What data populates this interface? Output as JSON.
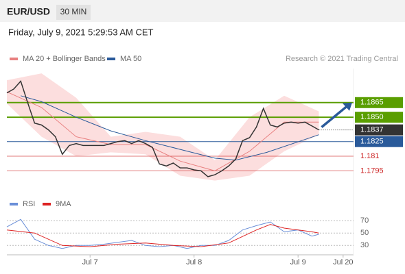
{
  "header": {
    "symbol": "EUR/USD",
    "timeframe": "30 MIN",
    "timestamp": "Friday, July 9, 2021 5:29:53 AM CET",
    "source": "Research © 2021 Trading Central"
  },
  "chart_data": [
    {
      "type": "price",
      "xlim": [
        0,
        100
      ],
      "xticks": [
        {
          "value": 24,
          "label": "Jul 7"
        },
        {
          "value": 54,
          "label": "Jul 8"
        },
        {
          "value": 84,
          "label": "Jul 9"
        },
        {
          "value": 97,
          "label": "Jul 20"
        }
      ],
      "ylim": [
        1.1777,
        1.19
      ],
      "price": {
        "color": "#333333",
        "x": [
          0,
          2,
          4,
          6,
          8,
          10,
          12,
          14,
          16,
          18,
          20,
          22,
          24,
          26,
          28,
          30,
          32,
          34,
          36,
          38,
          40,
          42,
          44,
          46,
          48,
          50,
          52,
          54,
          56,
          58,
          60,
          62,
          64,
          66,
          68,
          70,
          72,
          74,
          76,
          78,
          80,
          82,
          84,
          86,
          88,
          90
        ],
        "values": [
          1.1875,
          1.1879,
          1.1887,
          1.1865,
          1.1844,
          1.1842,
          1.1837,
          1.183,
          1.1812,
          1.1821,
          1.1823,
          1.1821,
          1.1821,
          1.1821,
          1.1821,
          1.1823,
          1.1825,
          1.1826,
          1.1823,
          1.1826,
          1.1823,
          1.1819,
          1.1802,
          1.18,
          1.1803,
          1.1798,
          1.1798,
          1.1796,
          1.1795,
          1.1789,
          1.1791,
          1.1795,
          1.18,
          1.1807,
          1.1826,
          1.1829,
          1.184,
          1.1859,
          1.1842,
          1.184,
          1.1844,
          1.1845,
          1.1844,
          1.1845,
          1.1841,
          1.1837
        ]
      },
      "series": [
        {
          "name": "MA 20 + Bollinger Bands",
          "color": "#e88080",
          "band_color": "#fcdede",
          "x": [
            0,
            10,
            20,
            30,
            40,
            50,
            60,
            70,
            80,
            90
          ],
          "values": [
            1.1876,
            1.186,
            1.183,
            1.1822,
            1.1822,
            1.1805,
            1.1795,
            1.1815,
            1.1845,
            1.1845
          ],
          "upper": [
            1.1888,
            1.1895,
            1.187,
            1.183,
            1.1835,
            1.183,
            1.1806,
            1.185,
            1.1872,
            1.1856
          ],
          "lower": [
            1.1864,
            1.183,
            1.181,
            1.1814,
            1.1812,
            1.179,
            1.1785,
            1.179,
            1.1815,
            1.1832
          ]
        },
        {
          "name": "MA 50",
          "color": "#2a5a9a",
          "x": [
            4,
            10,
            20,
            30,
            40,
            50,
            60,
            66,
            75,
            85,
            90
          ],
          "values": [
            1.1872,
            1.1866,
            1.185,
            1.1836,
            1.1826,
            1.1817,
            1.1808,
            1.1806,
            1.1814,
            1.1826,
            1.1832
          ]
        }
      ],
      "levels": [
        {
          "value": 1.1865,
          "style": "box",
          "color": "#5a9e00"
        },
        {
          "value": 1.185,
          "label": "1.1850",
          "style": "box",
          "color": "#5a9e00"
        },
        {
          "value": 1.1837,
          "style": "current",
          "color": "#333333"
        },
        {
          "value": 1.1825,
          "style": "box",
          "color": "#2a5a9a"
        },
        {
          "value": 1.181,
          "style": "text",
          "color": "#cc2222"
        },
        {
          "value": 1.1795,
          "style": "text",
          "color": "#cc2222"
        }
      ]
    },
    {
      "type": "oscillator",
      "xlim": [
        0,
        100
      ],
      "ylim": [
        17,
        89
      ],
      "yticks": [
        70,
        50,
        30
      ],
      "series": [
        {
          "name": "RSI",
          "color": "#6a8fd8",
          "x": [
            0,
            4,
            8,
            12,
            16,
            20,
            24,
            28,
            32,
            36,
            40,
            44,
            48,
            52,
            56,
            60,
            64,
            68,
            72,
            76,
            80,
            84,
            88,
            90
          ],
          "values": [
            60,
            72,
            40,
            30,
            25,
            30,
            30,
            32,
            35,
            38,
            30,
            28,
            30,
            25,
            30,
            30,
            38,
            55,
            62,
            68,
            52,
            55,
            45,
            48
          ]
        },
        {
          "name": "9MA",
          "color": "#dd2222",
          "x": [
            0,
            8,
            16,
            24,
            32,
            40,
            48,
            56,
            64,
            72,
            76,
            80,
            88,
            90
          ],
          "values": [
            55,
            50,
            30,
            28,
            32,
            34,
            30,
            28,
            34,
            55,
            64,
            58,
            52,
            50
          ]
        }
      ]
    }
  ]
}
